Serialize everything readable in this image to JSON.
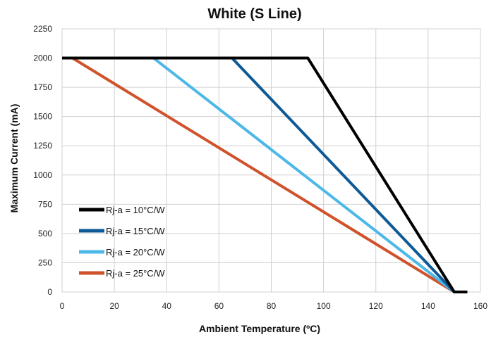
{
  "chart_data": {
    "type": "line",
    "title": "White (S Line)",
    "xlabel": "Ambient Temperature (ºC)",
    "ylabel": "Maximum Current (mA)",
    "xlim": [
      0,
      160
    ],
    "ylim": [
      0,
      2250
    ],
    "xticks": [
      0,
      20,
      40,
      60,
      80,
      100,
      120,
      140,
      160
    ],
    "yticks": [
      0,
      250,
      500,
      750,
      1000,
      1250,
      1500,
      1750,
      2000,
      2250
    ],
    "grid": true,
    "legend_position": "bottom-left",
    "series": [
      {
        "name": "Rj-a = 10°C/W",
        "color": "#000000",
        "x": [
          0,
          94,
          150,
          155
        ],
        "y": [
          2000,
          2000,
          0,
          0
        ]
      },
      {
        "name": "Rj-a = 15°C/W",
        "color": "#0e5a96",
        "x": [
          0,
          65,
          150,
          155
        ],
        "y": [
          2000,
          2000,
          0,
          0
        ]
      },
      {
        "name": "Rj-a = 20°C/W",
        "color": "#4db8e8",
        "x": [
          0,
          35,
          150,
          155
        ],
        "y": [
          2000,
          2000,
          0,
          0
        ]
      },
      {
        "name": "Rj-a = 25°C/W",
        "color": "#d0522a",
        "x": [
          0,
          4,
          150,
          155
        ],
        "y": [
          2000,
          2000,
          0,
          0
        ]
      }
    ]
  }
}
